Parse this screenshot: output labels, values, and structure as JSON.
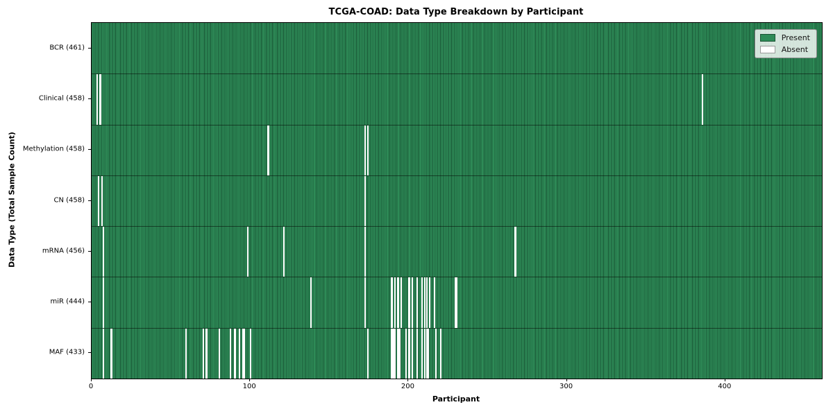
{
  "title": "TCGA-COAD: Data Type Breakdown by Participant",
  "xlabel": "Participant",
  "ylabel": "Data Type (Total Sample Count)",
  "x_ticks": [
    0,
    100,
    200,
    300,
    400
  ],
  "legend": {
    "items": [
      {
        "label": "Present",
        "color": "#2e8b57"
      },
      {
        "label": "Absent",
        "color": "#ffffff"
      }
    ]
  },
  "chart_data": {
    "type": "heatmap",
    "x_max": 461,
    "n_participants": 461,
    "present_color": "#2e8b57",
    "absent_color": "#ffffff",
    "xlabel": "Participant",
    "ylabel": "Data Type (Total Sample Count)",
    "title": "TCGA-COAD: Data Type Breakdown by Participant",
    "legend_position": "upper right",
    "rows": [
      {
        "key": "bcr",
        "label": "BCR (461)",
        "count": 461,
        "absent": []
      },
      {
        "key": "clinical",
        "label": "Clinical (458)",
        "count": 458,
        "absent": [
          3,
          5,
          385
        ]
      },
      {
        "key": "methylation",
        "label": "Methylation (458)",
        "count": 458,
        "absent": [
          111,
          172,
          174
        ]
      },
      {
        "key": "cn",
        "label": "CN (458)",
        "count": 458,
        "absent": [
          4,
          6,
          172
        ]
      },
      {
        "key": "mrna",
        "label": "mRNA (456)",
        "count": 456,
        "absent": [
          7,
          98,
          121,
          172,
          267
        ]
      },
      {
        "key": "mir",
        "label": "miR (444)",
        "count": 444,
        "absent": [
          7,
          138,
          172,
          189,
          191,
          193,
          195,
          200,
          202,
          205,
          208,
          210,
          211,
          213,
          216,
          229,
          230
        ]
      },
      {
        "key": "maf",
        "label": "MAF (433)",
        "count": 433,
        "absent": [
          7,
          12,
          59,
          70,
          72,
          80,
          87,
          90,
          93,
          95,
          96,
          100,
          174,
          189,
          190,
          191,
          193,
          194,
          198,
          200,
          202,
          205,
          208,
          210,
          211,
          212,
          217,
          220
        ]
      }
    ]
  }
}
